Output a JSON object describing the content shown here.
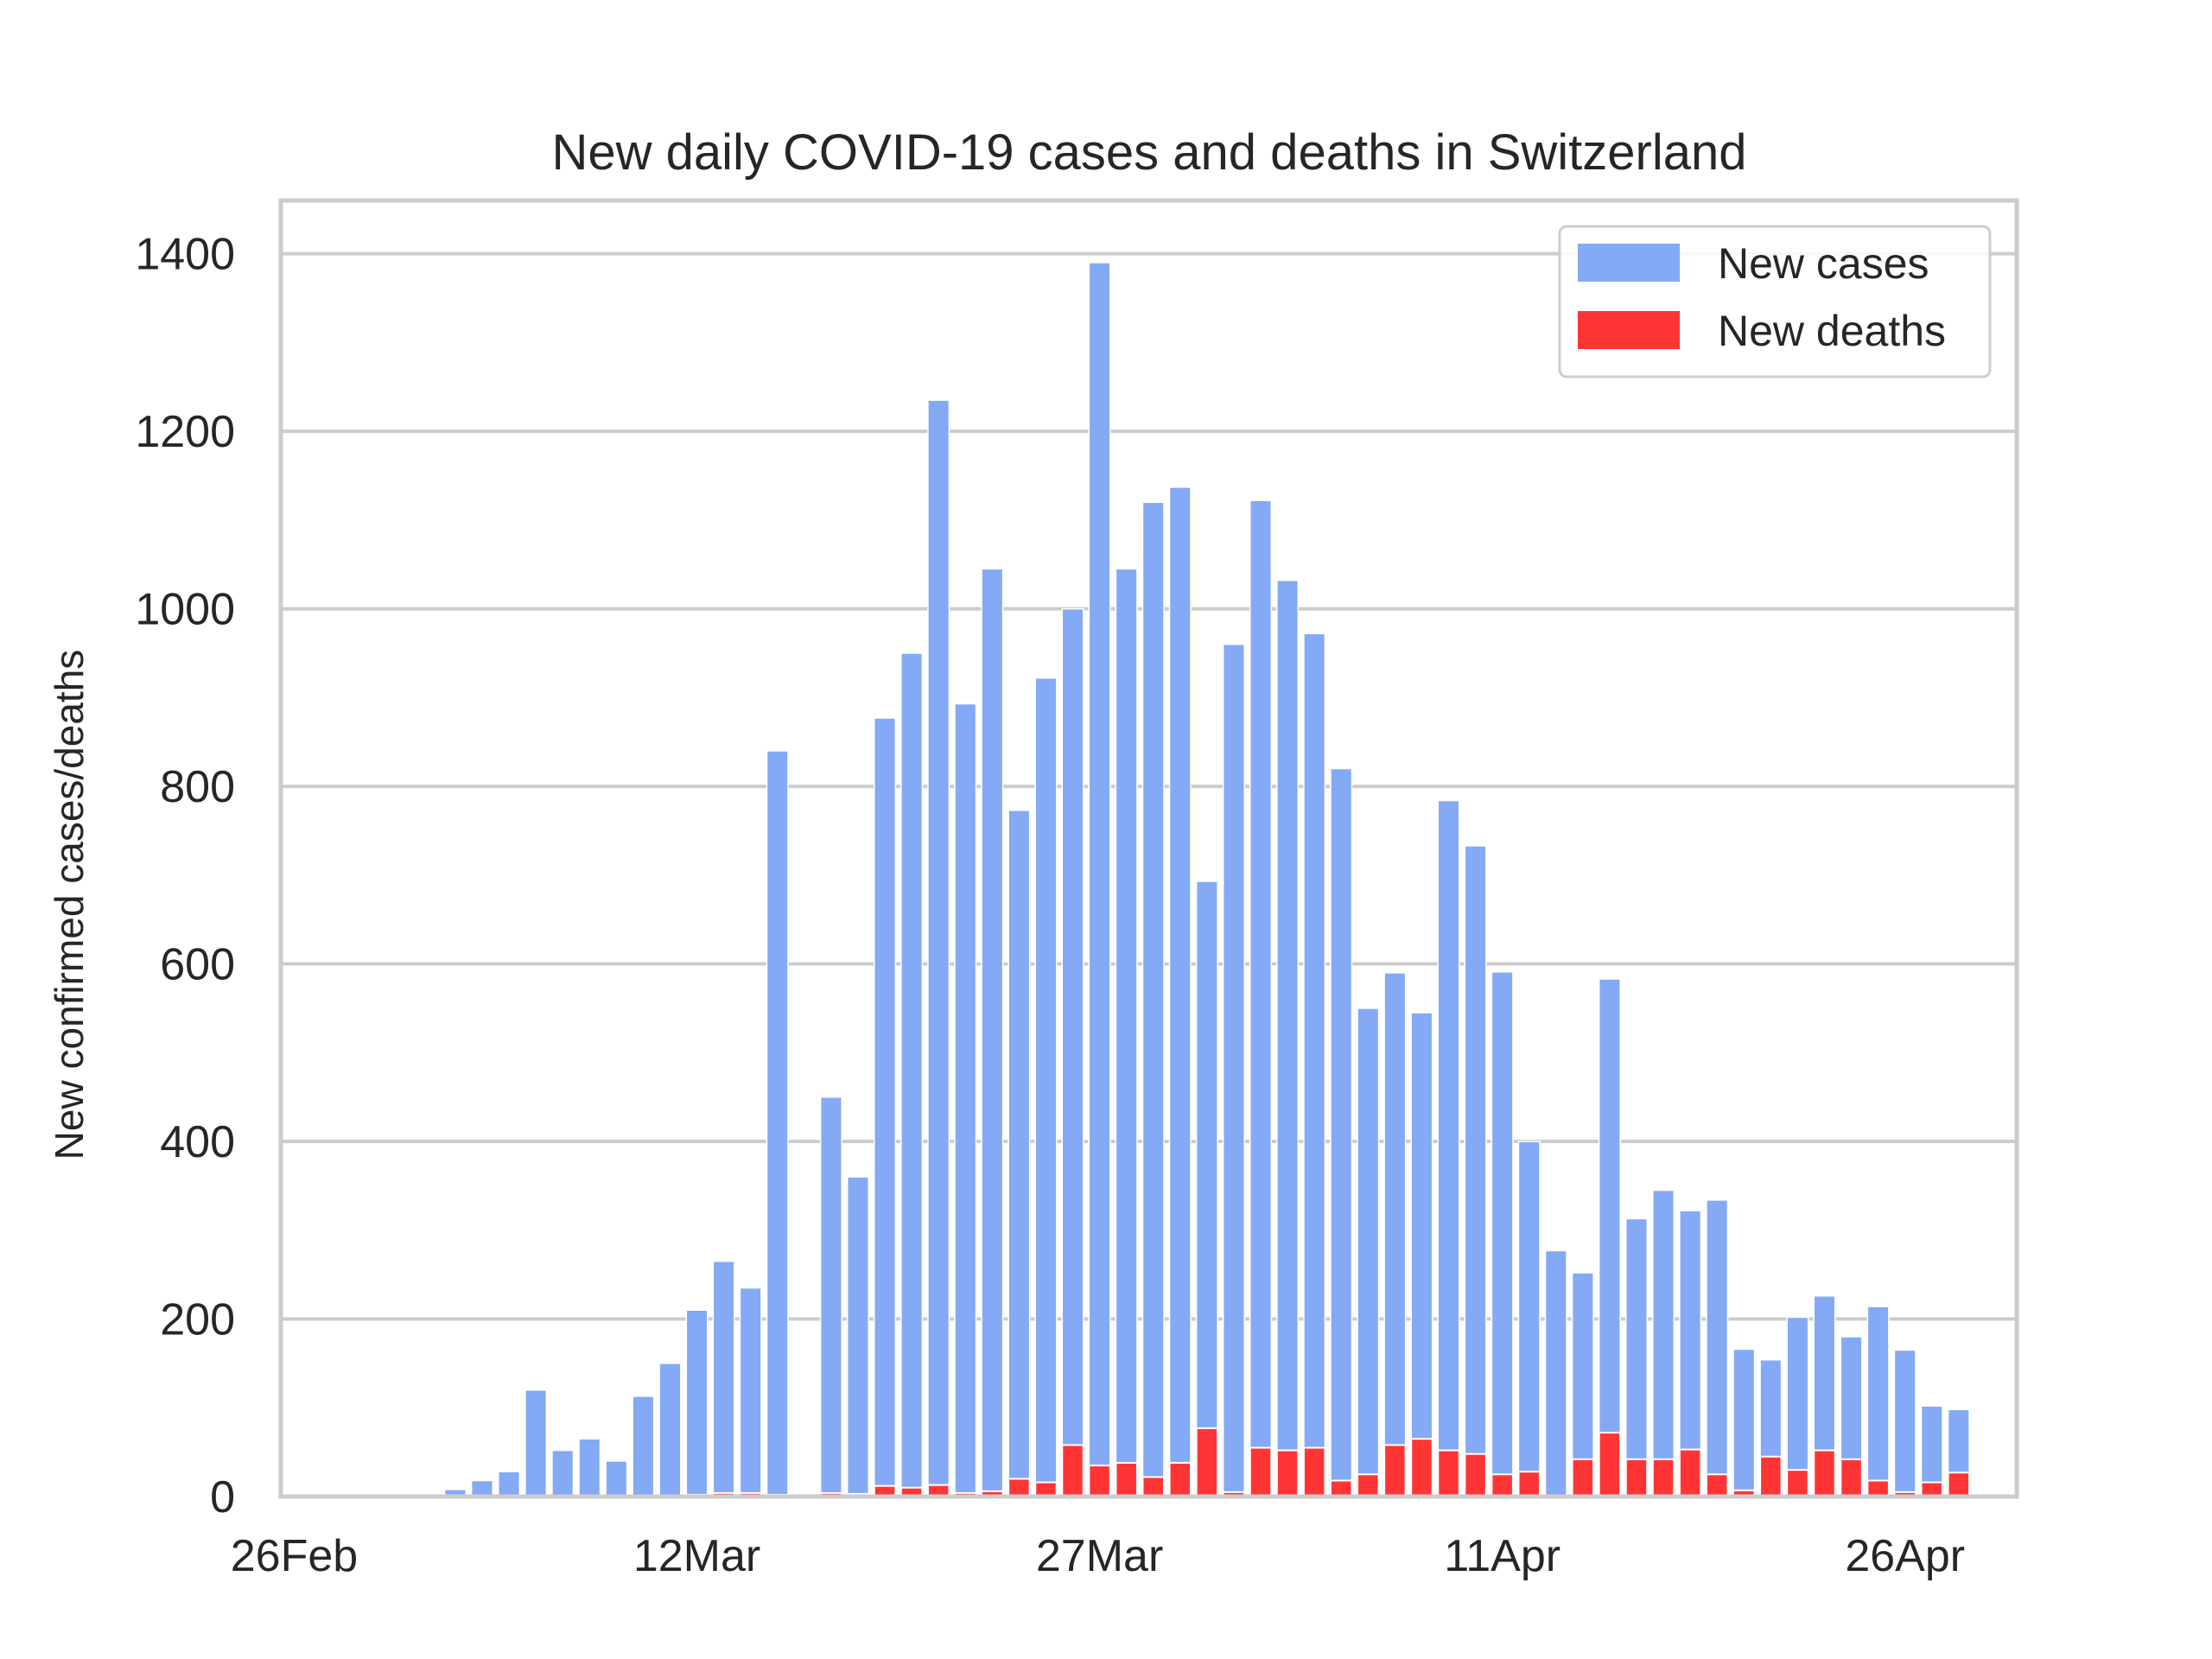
{
  "chart_data": {
    "type": "bar",
    "title": "New daily COVID-19 cases and deaths in Switzerland",
    "xlabel": "",
    "ylabel": "New confirmed cases/deaths",
    "ylim": [
      0,
      1460
    ],
    "yticks": [
      0,
      200,
      400,
      600,
      800,
      1000,
      1200,
      1400
    ],
    "xticks": [
      {
        "label": "26Feb",
        "index": 0
      },
      {
        "label": "12Mar",
        "index": 15
      },
      {
        "label": "27Mar",
        "index": 30
      },
      {
        "label": "11Apr",
        "index": 45
      },
      {
        "label": "26Apr",
        "index": 60
      }
    ],
    "grid": true,
    "legend_position": "top-right",
    "start_date": "2020-02-26",
    "series": [
      {
        "name": "New cases",
        "color": "#84a9f5",
        "values": [
          0,
          2,
          1,
          1,
          1,
          2,
          8,
          18,
          28,
          120,
          52,
          65,
          40,
          113,
          150,
          210,
          265,
          235,
          840,
          0,
          450,
          360,
          877,
          950,
          1235,
          893,
          1045,
          773,
          922,
          1000,
          1390,
          1045,
          1120,
          1137,
          693,
          960,
          1122,
          1032,
          972,
          820,
          550,
          590,
          545,
          784,
          733,
          591,
          400,
          277,
          252,
          583,
          313,
          345,
          322,
          334,
          166,
          154,
          202,
          226,
          180,
          214,
          165,
          102,
          98
        ]
      },
      {
        "name": "New deaths",
        "color": "#ff3535",
        "values": [
          0,
          0,
          0,
          0,
          0,
          0,
          0,
          0,
          0,
          0,
          1,
          0,
          1,
          1,
          1,
          2,
          4,
          4,
          2,
          0,
          4,
          3,
          12,
          10,
          13,
          4,
          6,
          20,
          16,
          58,
          35,
          38,
          22,
          38,
          77,
          5,
          55,
          52,
          55,
          18,
          25,
          58,
          65,
          52,
          48,
          25,
          28,
          0,
          42,
          72,
          42,
          42,
          53,
          25,
          7,
          45,
          30,
          52,
          42,
          18,
          5,
          16,
          27
        ]
      }
    ]
  }
}
